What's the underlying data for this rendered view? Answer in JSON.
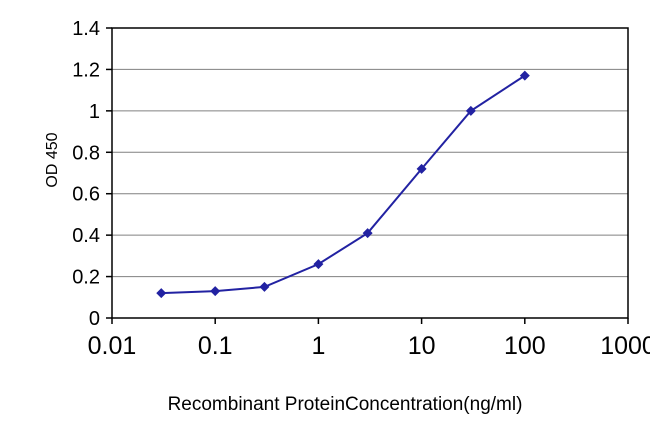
{
  "chart_data": {
    "type": "line",
    "title": "",
    "xlabel": "Recombinant ProteinConcentration(ng/ml)",
    "ylabel": "OD 450",
    "x_scale": "log",
    "xlim": [
      0.01,
      1000
    ],
    "ylim": [
      0,
      1.4
    ],
    "x_ticks": [
      0.01,
      0.1,
      1,
      10,
      100,
      1000
    ],
    "x_tick_labels": [
      "0.01",
      "0.1",
      "1",
      "10",
      "100",
      "1000"
    ],
    "y_ticks": [
      0,
      0.2,
      0.4,
      0.6,
      0.8,
      1,
      1.2,
      1.4
    ],
    "y_tick_labels": [
      "0",
      "0.2",
      "0.4",
      "0.6",
      "0.8",
      "1",
      "1.2",
      "1.4"
    ],
    "grid": "horizontal",
    "grid_color": "#808080",
    "axis_color": "#000000",
    "background_color": "#ffffff",
    "legend": "none",
    "series": [
      {
        "name": "OD450 response",
        "color": "#2222a2",
        "marker": "diamond",
        "x": [
          0.03,
          0.1,
          0.3,
          1,
          3,
          10,
          30,
          100
        ],
        "y": [
          0.12,
          0.13,
          0.15,
          0.26,
          0.41,
          0.72,
          1.0,
          1.17
        ]
      }
    ]
  }
}
